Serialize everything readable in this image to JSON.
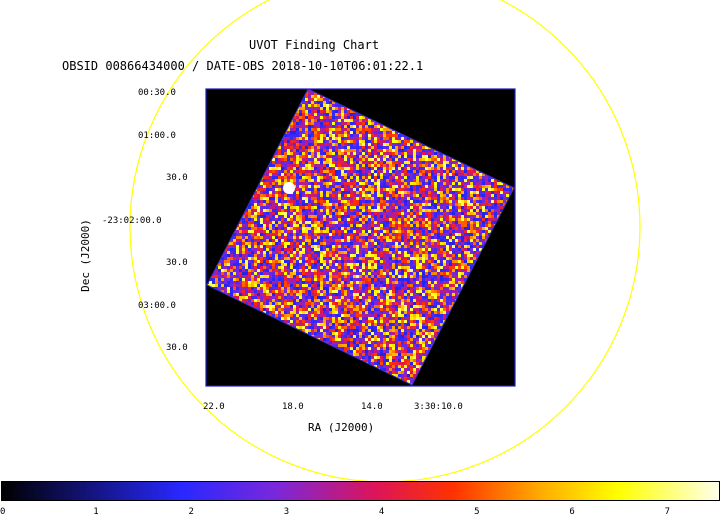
{
  "title": "UVOT Finding Chart",
  "subtitle": "OBSID 00866434000 / DATE-OBS 2018-10-10T06:01:22.1",
  "axes": {
    "xlabel": "RA (J2000)",
    "ylabel": "Dec (J2000)",
    "ra_ticks": [
      "22.0",
      "18.0",
      "14.0",
      "3:30:10.0"
    ],
    "dec_ticks": [
      "00:30.0",
      "01:00.0",
      "30.0",
      "-23:02:00.0",
      "30.0",
      "03:00.0",
      "30.0"
    ]
  },
  "colorbar": {
    "ticks": [
      "0",
      "1",
      "2",
      "3",
      "4",
      "5",
      "6",
      "7"
    ]
  },
  "colors": {
    "circle": "#ffff00",
    "frame": "#2020c0",
    "background": "#000000"
  }
}
